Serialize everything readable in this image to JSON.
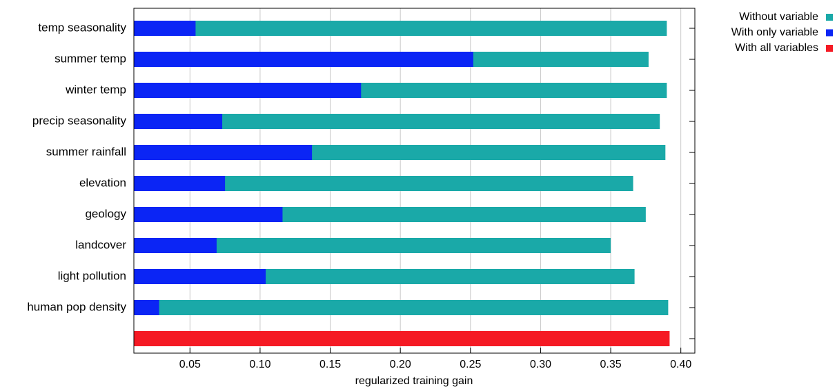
{
  "chart_data": {
    "type": "bar",
    "orientation": "horizontal",
    "x_label": "regularized training gain",
    "categories": [
      "temp seasonality",
      "summer temp",
      "winter temp",
      "precip seasonality",
      "summer rainfall",
      "elevation",
      "geology",
      "landcover",
      "light pollution",
      "human pop density",
      null
    ],
    "series": [
      {
        "name": "Without variable",
        "color": "#1aa9a8",
        "values": [
          0.39,
          0.377,
          0.39,
          0.385,
          0.389,
          0.366,
          0.375,
          0.35,
          0.367,
          0.391,
          null
        ]
      },
      {
        "name": "With only variable",
        "color": "#0b25f5",
        "values": [
          0.054,
          0.252,
          0.172,
          0.073,
          0.137,
          0.075,
          0.116,
          0.069,
          0.104,
          0.028,
          null
        ]
      },
      {
        "name": "With all variables",
        "color": "#f51a24",
        "values": [
          null,
          null,
          null,
          null,
          null,
          null,
          null,
          null,
          null,
          null,
          0.392
        ]
      }
    ],
    "xlim": [
      0.01,
      0.41
    ],
    "xticks": [
      0.05,
      {
        "value": 0.1,
        "label": "0.10"
      },
      0.15,
      {
        "value": 0.2,
        "label": "0.20"
      },
      0.25,
      {
        "value": 0.3,
        "label": "0.30"
      },
      0.35,
      {
        "value": 0.4,
        "label": "0.40"
      }
    ],
    "grid": true,
    "legend": "top right"
  }
}
